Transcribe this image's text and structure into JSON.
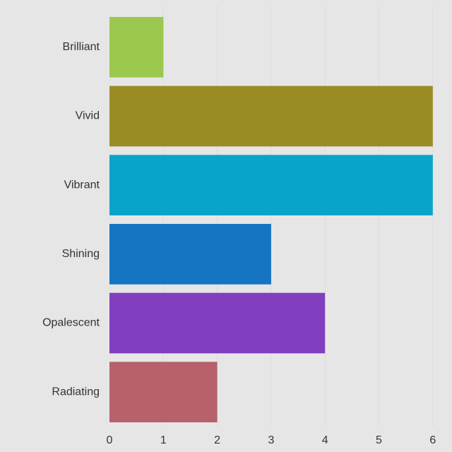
{
  "chart_data": {
    "type": "bar",
    "orientation": "horizontal",
    "categories": [
      "Brilliant",
      "Vivid",
      "Vibrant",
      "Shining",
      "Opalescent",
      "Radiating"
    ],
    "values": [
      1,
      6,
      6,
      3,
      4,
      2
    ],
    "colors": [
      "#9bc84e",
      "#9a8c24",
      "#09a4ca",
      "#1575c3",
      "#813ebf",
      "#b6616c"
    ],
    "xlim": [
      0,
      6.2
    ],
    "xticks": [
      0,
      1,
      2,
      3,
      4,
      5,
      6
    ],
    "title": "",
    "xlabel": "",
    "ylabel": "",
    "grid": "vertical",
    "legend": "none",
    "background": "#e6e6e6"
  }
}
